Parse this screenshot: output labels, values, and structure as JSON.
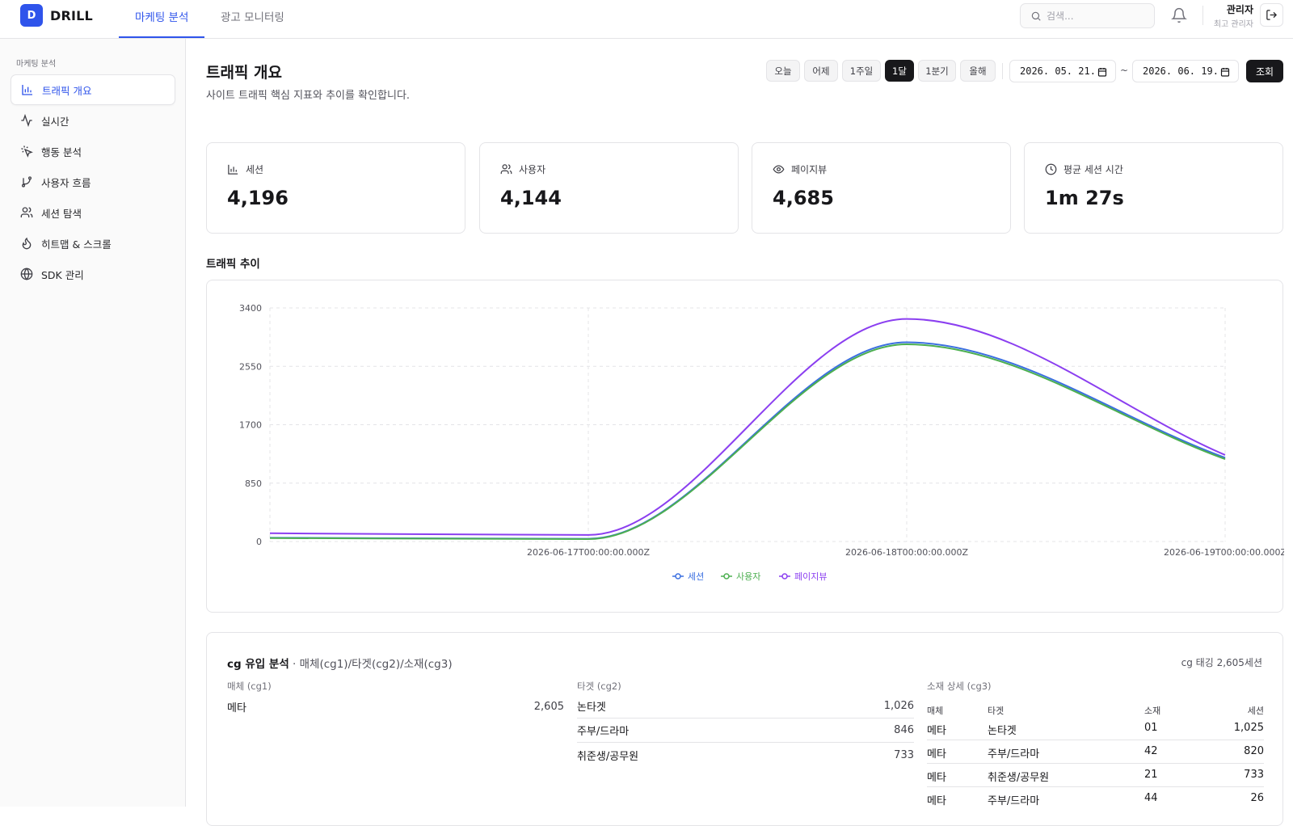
{
  "app": {
    "logo_letter": "D",
    "name": "DRILL"
  },
  "topnav": {
    "tabs": [
      {
        "label": "마케팅 분석"
      },
      {
        "label": "광고 모니터링"
      }
    ]
  },
  "search": {
    "placeholder": "검색..."
  },
  "user": {
    "name": "관리자",
    "role": "최고 관리자"
  },
  "sidebar": {
    "section": "마케팅 분석",
    "items": [
      {
        "label": "트래픽 개요",
        "icon": "bar-chart-icon"
      },
      {
        "label": "실시간",
        "icon": "activity-icon"
      },
      {
        "label": "행동 분석",
        "icon": "pointer-click-icon"
      },
      {
        "label": "사용자 흐름",
        "icon": "git-branch-icon"
      },
      {
        "label": "세션 탐색",
        "icon": "users-icon"
      },
      {
        "label": "히트맵 & 스크롤",
        "icon": "flame-icon"
      },
      {
        "label": "SDK 관리",
        "icon": "globe-icon"
      }
    ]
  },
  "page": {
    "title": "트래픽 개요",
    "subtitle": "사이트 트래픽 핵심 지표와 추이를 확인합니다."
  },
  "ranges": [
    "오늘",
    "어제",
    "1주일",
    "1달",
    "1분기",
    "올해"
  ],
  "active_range": "1달",
  "date_from": "2026. 05. 21.",
  "date_to": "2026. 06. 19.",
  "date_sep": "~",
  "query_label": "조회",
  "stats": [
    {
      "label": "세션",
      "value": "4,196",
      "icon": "bar-chart-icon"
    },
    {
      "label": "사용자",
      "value": "4,144",
      "icon": "users-icon"
    },
    {
      "label": "페이지뷰",
      "value": "4,685",
      "icon": "eye-icon"
    },
    {
      "label": "평균 세션 시간",
      "value": "1m 27s",
      "icon": "clock-icon"
    }
  ],
  "trend_title": "트래픽 추이",
  "chart_data": {
    "type": "line",
    "x": [
      "2026-06-16T00:00:00.000Z",
      "2026-06-17T00:00:00.000Z",
      "2026-06-18T00:00:00.000Z",
      "2026-06-19T00:00:00.000Z"
    ],
    "x_tick_labels": [
      "2026-06-17T00:00:00.000Z",
      "2026-06-18T00:00:00.000Z",
      "2026-06-19T00:00:00.000Z"
    ],
    "y_ticks": [
      "0",
      "850",
      "1700",
      "2550",
      "3400"
    ],
    "ylim": [
      0,
      3400
    ],
    "grid": true,
    "legend_position": "bottom",
    "series": [
      {
        "name": "세션",
        "color": "#3b6fe0",
        "values": [
          55,
          40,
          2900,
          1220
        ]
      },
      {
        "name": "사용자",
        "color": "#4caf50",
        "values": [
          50,
          35,
          2870,
          1200
        ]
      },
      {
        "name": "페이지뷰",
        "color": "#8b3ff0",
        "values": [
          120,
          95,
          3240,
          1260
        ]
      }
    ]
  },
  "cg": {
    "title": "cg 유입 분석",
    "subtitle": " · 매체(cg1)/타겟(cg2)/소재(cg3)",
    "total": "cg 태깅 2,605세션",
    "col1_head": "매체 (cg1)",
    "col2_head": "타겟 (cg2)",
    "col3_head": "소재 상세 (cg3)",
    "media": [
      {
        "name": "메타",
        "count": "2,605"
      }
    ],
    "targets": [
      {
        "name": "논타겟",
        "count": "1,026"
      },
      {
        "name": "주부/드라마",
        "count": "846"
      },
      {
        "name": "취준생/공무원",
        "count": "733"
      }
    ],
    "detail_headers": [
      "매체",
      "타겟",
      "소재",
      "세션"
    ],
    "details": [
      {
        "media": "메타",
        "target": "논타겟",
        "creative": "01",
        "sessions": "1,025"
      },
      {
        "media": "메타",
        "target": "주부/드라마",
        "creative": "42",
        "sessions": "820"
      },
      {
        "media": "메타",
        "target": "취준생/공무원",
        "creative": "21",
        "sessions": "733"
      },
      {
        "media": "메타",
        "target": "주부/드라마",
        "creative": "44",
        "sessions": "26"
      }
    ]
  }
}
